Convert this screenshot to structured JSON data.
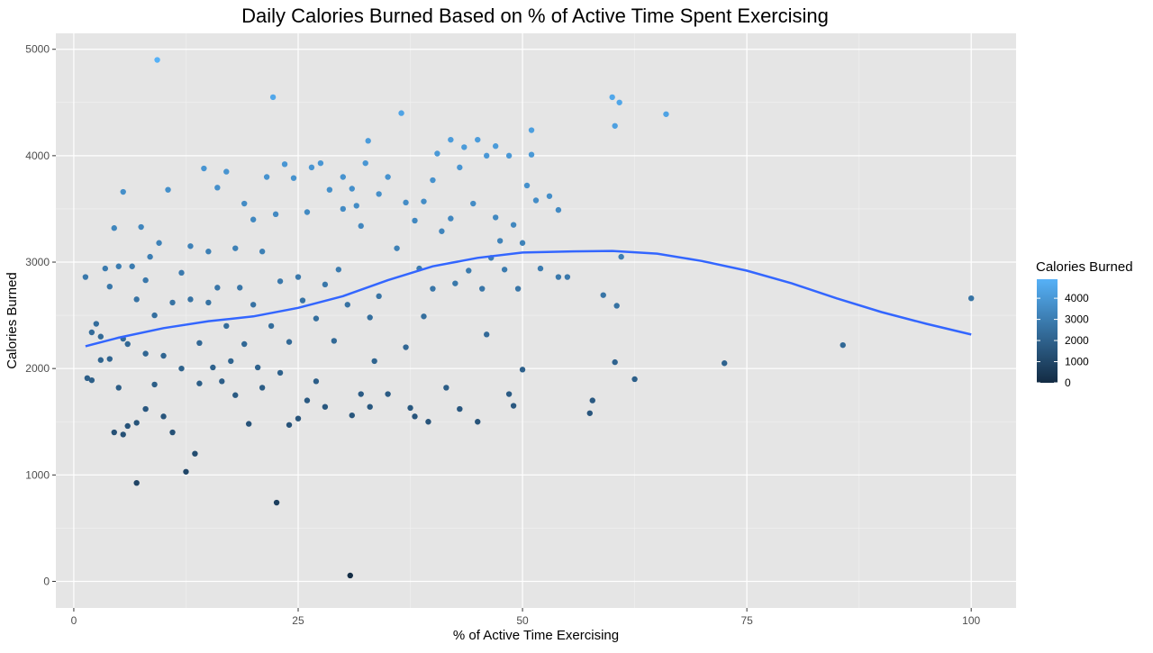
{
  "chart_data": {
    "type": "scatter",
    "title": "Daily Calories Burned Based on % of Active Time Spent Exercising",
    "xlabel": "% of Active Time Exercising",
    "ylabel": "Calories Burned",
    "xlim": [
      -2,
      105
    ],
    "ylim": [
      -250,
      5150
    ],
    "x_ticks": [
      0,
      25,
      50,
      75,
      100
    ],
    "y_ticks": [
      0,
      1000,
      2000,
      3000,
      4000,
      5000
    ],
    "grid": true,
    "legend": {
      "title": "Calories Burned",
      "position": "right",
      "ticks": [
        0,
        1000,
        2000,
        3000,
        4000
      ],
      "range": [
        0,
        4900
      ],
      "color_low": "#132b43",
      "color_high": "#56b1f7"
    },
    "smooth_color": "#3366ff",
    "smooth_curve": [
      [
        1.3,
        2210
      ],
      [
        5,
        2290
      ],
      [
        10,
        2380
      ],
      [
        15,
        2445
      ],
      [
        20,
        2490
      ],
      [
        25,
        2570
      ],
      [
        30,
        2680
      ],
      [
        35,
        2830
      ],
      [
        40,
        2960
      ],
      [
        45,
        3040
      ],
      [
        50,
        3090
      ],
      [
        55,
        3100
      ],
      [
        60,
        3105
      ],
      [
        65,
        3080
      ],
      [
        70,
        3010
      ],
      [
        75,
        2920
      ],
      [
        80,
        2800
      ],
      [
        85,
        2660
      ],
      [
        90,
        2530
      ],
      [
        95,
        2420
      ],
      [
        100,
        2320
      ]
    ],
    "points": [
      [
        1.3,
        2860
      ],
      [
        1.5,
        1910
      ],
      [
        2,
        2340
      ],
      [
        2,
        1890
      ],
      [
        2.5,
        2420
      ],
      [
        3,
        2300
      ],
      [
        3,
        2080
      ],
      [
        3.5,
        2940
      ],
      [
        4,
        2770
      ],
      [
        4,
        2090
      ],
      [
        4.5,
        3320
      ],
      [
        4.5,
        1400
      ],
      [
        5,
        2960
      ],
      [
        5,
        1820
      ],
      [
        5.5,
        3660
      ],
      [
        5.5,
        2280
      ],
      [
        5.5,
        1380
      ],
      [
        6,
        2230
      ],
      [
        6,
        1460
      ],
      [
        6.5,
        2960
      ],
      [
        7,
        2650
      ],
      [
        7,
        1490
      ],
      [
        7,
        925
      ],
      [
        7.5,
        3330
      ],
      [
        8,
        2830
      ],
      [
        8,
        2140
      ],
      [
        8,
        1620
      ],
      [
        8.5,
        3050
      ],
      [
        9,
        2500
      ],
      [
        9,
        1850
      ],
      [
        9.3,
        4900
      ],
      [
        9.5,
        3180
      ],
      [
        10,
        2120
      ],
      [
        10,
        1550
      ],
      [
        10.5,
        3680
      ],
      [
        11,
        2620
      ],
      [
        11,
        1400
      ],
      [
        12,
        2900
      ],
      [
        12,
        2000
      ],
      [
        12.5,
        1030
      ],
      [
        13,
        3150
      ],
      [
        13,
        2650
      ],
      [
        13.5,
        1200
      ],
      [
        14,
        2240
      ],
      [
        14,
        1860
      ],
      [
        14.5,
        3880
      ],
      [
        15,
        3100
      ],
      [
        15,
        2620
      ],
      [
        15.5,
        2010
      ],
      [
        16,
        3700
      ],
      [
        16,
        2760
      ],
      [
        16.5,
        1880
      ],
      [
        17,
        3850
      ],
      [
        17,
        2400
      ],
      [
        17.5,
        2070
      ],
      [
        18,
        3130
      ],
      [
        18,
        1750
      ],
      [
        18.5,
        2760
      ],
      [
        19,
        3550
      ],
      [
        19,
        2230
      ],
      [
        19.5,
        1480
      ],
      [
        20,
        3400
      ],
      [
        20,
        2600
      ],
      [
        20.5,
        2010
      ],
      [
        21,
        3100
      ],
      [
        21,
        1820
      ],
      [
        21.5,
        3800
      ],
      [
        22,
        2400
      ],
      [
        22.2,
        4550
      ],
      [
        22.5,
        3450
      ],
      [
        22.6,
        740
      ],
      [
        23,
        2820
      ],
      [
        23,
        1960
      ],
      [
        23.5,
        3920
      ],
      [
        24,
        2250
      ],
      [
        24,
        1470
      ],
      [
        24.5,
        3790
      ],
      [
        25,
        2860
      ],
      [
        25,
        1530
      ],
      [
        25.5,
        2640
      ],
      [
        26,
        3470
      ],
      [
        26,
        1700
      ],
      [
        26.5,
        3890
      ],
      [
        27,
        2470
      ],
      [
        27,
        1880
      ],
      [
        27.5,
        3930
      ],
      [
        28,
        2790
      ],
      [
        28,
        1640
      ],
      [
        28.5,
        3680
      ],
      [
        29,
        2260
      ],
      [
        29.5,
        2930
      ],
      [
        30,
        3800
      ],
      [
        30,
        3500
      ],
      [
        30.5,
        2600
      ],
      [
        30.8,
        55
      ],
      [
        31,
        3690
      ],
      [
        31,
        1560
      ],
      [
        31.5,
        3530
      ],
      [
        32,
        3340
      ],
      [
        32,
        1760
      ],
      [
        32.5,
        3930
      ],
      [
        32.8,
        4140
      ],
      [
        33,
        2480
      ],
      [
        33,
        1640
      ],
      [
        33.5,
        2070
      ],
      [
        34,
        3640
      ],
      [
        34,
        2680
      ],
      [
        35,
        3800
      ],
      [
        35,
        1760
      ],
      [
        36,
        3130
      ],
      [
        36.5,
        4400
      ],
      [
        37,
        3560
      ],
      [
        37,
        2200
      ],
      [
        37.5,
        1630
      ],
      [
        38,
        3390
      ],
      [
        38,
        1550
      ],
      [
        38.5,
        2940
      ],
      [
        39,
        3570
      ],
      [
        39,
        2490
      ],
      [
        39.5,
        1500
      ],
      [
        40,
        3770
      ],
      [
        40,
        2750
      ],
      [
        40.5,
        4020
      ],
      [
        41,
        3290
      ],
      [
        41.5,
        1820
      ],
      [
        42,
        4150
      ],
      [
        42,
        3410
      ],
      [
        42.5,
        2800
      ],
      [
        43,
        3890
      ],
      [
        43,
        1620
      ],
      [
        43.5,
        4080
      ],
      [
        44,
        2920
      ],
      [
        44.5,
        3550
      ],
      [
        45,
        4150
      ],
      [
        45,
        1500
      ],
      [
        45.5,
        2750
      ],
      [
        46,
        4000
      ],
      [
        46,
        2320
      ],
      [
        46.5,
        3040
      ],
      [
        47,
        4090
      ],
      [
        47,
        3420
      ],
      [
        47.5,
        3200
      ],
      [
        48,
        2930
      ],
      [
        48.5,
        4000
      ],
      [
        48.5,
        1760
      ],
      [
        49,
        3350
      ],
      [
        49,
        1650
      ],
      [
        49.5,
        2750
      ],
      [
        50,
        3180
      ],
      [
        50,
        1990
      ],
      [
        50.5,
        3720
      ],
      [
        51,
        4240
      ],
      [
        51,
        4010
      ],
      [
        51.5,
        3580
      ],
      [
        52,
        2940
      ],
      [
        53,
        3620
      ],
      [
        54,
        3490
      ],
      [
        54,
        2860
      ],
      [
        55,
        2860
      ],
      [
        57.5,
        1580
      ],
      [
        57.8,
        1700
      ],
      [
        59,
        2690
      ],
      [
        60,
        4550
      ],
      [
        60.3,
        4280
      ],
      [
        60.3,
        2060
      ],
      [
        60.5,
        2590
      ],
      [
        60.8,
        4500
      ],
      [
        61,
        3050
      ],
      [
        62.5,
        1900
      ],
      [
        66,
        4390
      ],
      [
        72.5,
        2050
      ],
      [
        85.7,
        2220
      ],
      [
        100,
        2660
      ]
    ]
  }
}
